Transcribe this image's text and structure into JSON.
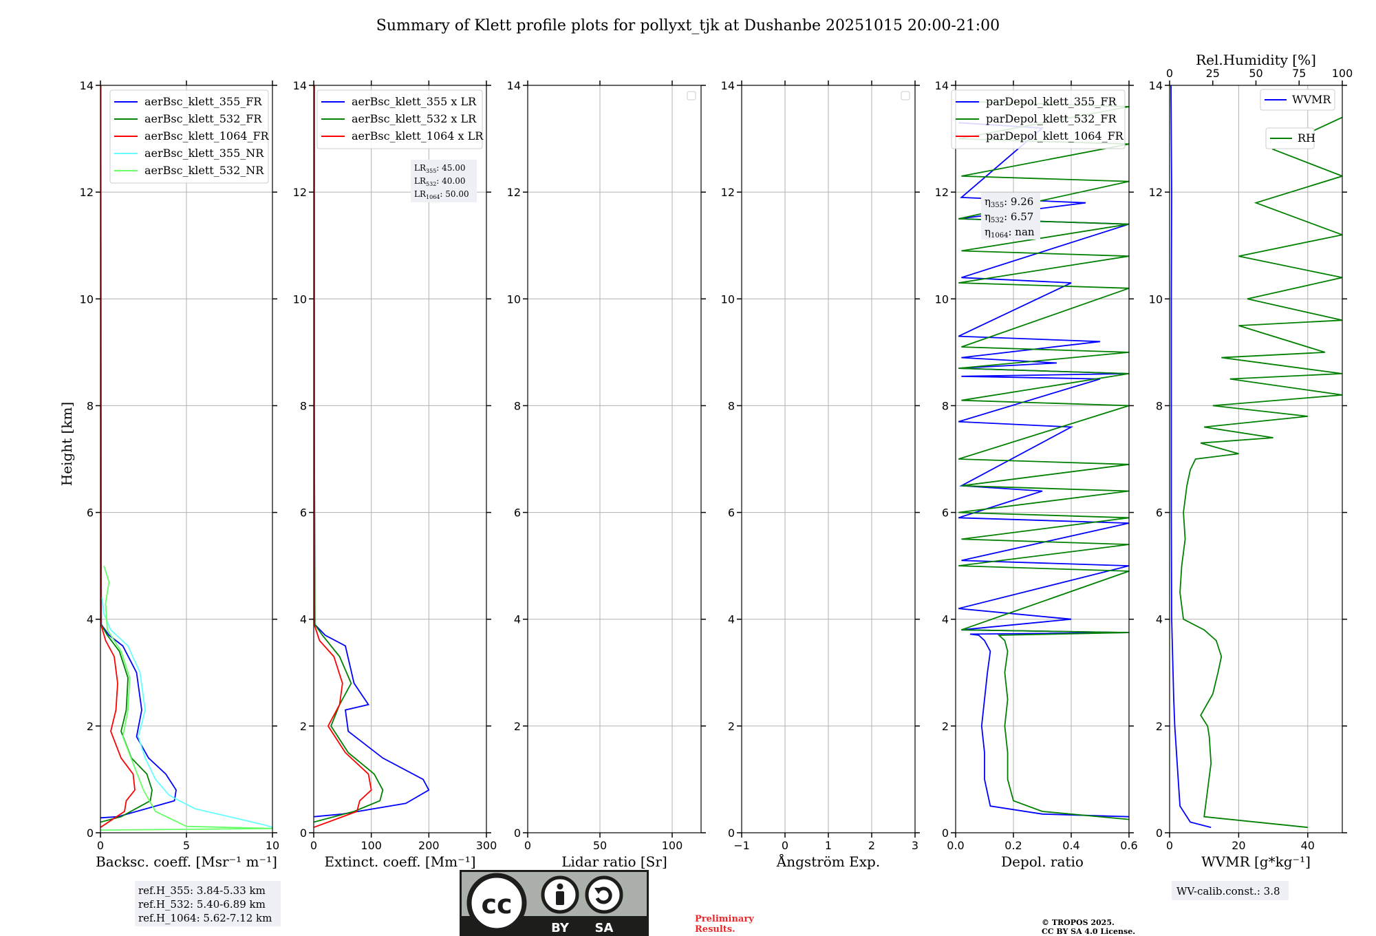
{
  "title": "Summary of Klett profile plots for pollyxt_tjk at Dushanbe 20251015 20:00-21:00",
  "ylabel": "Height [km]",
  "colors": {
    "blue": "#0000ff",
    "green": "#008000",
    "red": "#ff0000",
    "cyan": "#66ffff",
    "lightgreen": "#66ff66",
    "grid": "#b0b0b0",
    "box": "#eef0f5",
    "prelim": "#e8282b"
  },
  "chart_data": [
    {
      "type": "line",
      "xlabel": "Backsc. coeff. [Msr⁻¹ m⁻¹]",
      "xlim": [
        0,
        10
      ],
      "xticks": [
        0,
        5,
        10
      ],
      "ylim": [
        0,
        14
      ],
      "yticks": [
        0,
        2,
        4,
        6,
        8,
        10,
        12,
        14
      ],
      "grid": true,
      "legend_position": "top-right",
      "series": [
        {
          "name": "aerBsc_klett_355_FR",
          "color": "#0000ff",
          "x": [
            0,
            1.0,
            4.3,
            4.4,
            3.8,
            2.8,
            2.1,
            2.4,
            2.1,
            1.3,
            0.5,
            0.05,
            0.04,
            0.03,
            0.02
          ],
          "y": [
            0.28,
            0.3,
            0.6,
            0.8,
            1.1,
            1.4,
            1.8,
            2.3,
            3.0,
            3.5,
            3.7,
            3.9,
            6.0,
            10.0,
            14.0
          ]
        },
        {
          "name": "aerBsc_klett_532_FR",
          "color": "#008000",
          "x": [
            0,
            1.2,
            2.9,
            3.0,
            2.7,
            1.8,
            1.2,
            1.5,
            1.6,
            1.1,
            0.4,
            0.04,
            0.03,
            0.02,
            0.02
          ],
          "y": [
            0.2,
            0.3,
            0.6,
            0.8,
            1.1,
            1.4,
            1.9,
            2.3,
            2.9,
            3.4,
            3.7,
            3.9,
            6.0,
            10.0,
            14.0
          ]
        },
        {
          "name": "aerBsc_klett_1064_FR",
          "color": "#ff0000",
          "x": [
            0,
            1.4,
            1.5,
            2.0,
            1.9,
            1.2,
            0.6,
            0.9,
            1.0,
            0.8,
            0.3,
            0.03,
            0.02,
            0.02,
            0.01
          ],
          "y": [
            0.1,
            0.4,
            0.6,
            0.8,
            1.1,
            1.4,
            1.9,
            2.3,
            2.8,
            3.3,
            3.6,
            3.9,
            6.0,
            10.0,
            14.0
          ]
        },
        {
          "name": "aerBsc_klett_355_NR",
          "color": "#66ffff",
          "x": [
            10,
            9.5,
            7.5,
            5.5,
            4.0,
            3.2,
            2.6,
            2.2,
            2.6,
            2.3,
            1.6,
            0.6,
            0.2,
            0.1
          ],
          "y": [
            0.1,
            0.15,
            0.3,
            0.45,
            0.7,
            1.0,
            1.4,
            1.8,
            2.3,
            3.0,
            3.5,
            3.8,
            4.1,
            4.4
          ]
        },
        {
          "name": "aerBsc_klett_532_NR",
          "color": "#66ff66",
          "x": [
            0,
            10,
            5.0,
            3.2,
            2.5,
            1.9,
            1.3,
            1.6,
            1.7,
            1.2,
            0.4,
            0.3,
            0.5,
            0.2
          ],
          "y": [
            0.05,
            0.08,
            0.12,
            0.4,
            0.8,
            1.3,
            1.8,
            2.3,
            2.9,
            3.4,
            3.8,
            4.3,
            4.7,
            5.0
          ]
        }
      ],
      "ref_info": [
        "ref.H_355: 3.84-5.33 km",
        "ref.H_532: 5.40-6.89 km",
        "ref.H_1064: 5.62-7.12 km"
      ]
    },
    {
      "type": "line",
      "xlabel": "Extinct. coeff. [Mm⁻¹]",
      "xlim": [
        0,
        300
      ],
      "xticks": [
        0,
        100,
        200,
        300
      ],
      "ylim": [
        0,
        14
      ],
      "yticks": [
        0,
        2,
        4,
        6,
        8,
        10,
        12,
        14
      ],
      "grid": true,
      "legend_position": "top-right",
      "series": [
        {
          "name": "aerBsc_klett_355 x LR",
          "color": "#0000ff",
          "x": [
            0,
            50,
            160,
            200,
            190,
            120,
            60,
            55,
            95,
            70,
            55,
            20,
            2,
            1,
            1
          ],
          "y": [
            0.3,
            0.35,
            0.55,
            0.8,
            1.0,
            1.4,
            1.9,
            2.3,
            2.4,
            2.8,
            3.5,
            3.7,
            3.9,
            8.0,
            14.0
          ]
        },
        {
          "name": "aerBsc_klett_532 x LR",
          "color": "#008000",
          "x": [
            0,
            70,
            115,
            120,
            105,
            60,
            30,
            45,
            65,
            45,
            15,
            2,
            1,
            1
          ],
          "y": [
            0.2,
            0.4,
            0.6,
            0.8,
            1.1,
            1.5,
            2.0,
            2.4,
            2.8,
            3.3,
            3.7,
            3.9,
            8.0,
            14.0
          ]
        },
        {
          "name": "aerBsc_klett_1064 x LR",
          "color": "#ff0000",
          "x": [
            0,
            75,
            80,
            100,
            95,
            55,
            25,
            45,
            50,
            35,
            10,
            1,
            1,
            1
          ],
          "y": [
            0.1,
            0.4,
            0.6,
            0.8,
            1.1,
            1.5,
            2.0,
            2.4,
            2.8,
            3.3,
            3.6,
            3.9,
            8.0,
            14.0
          ]
        }
      ],
      "lr_info": {
        "lr355": "45.00",
        "lr532": "40.00",
        "lr1064": "50.00"
      }
    },
    {
      "type": "line",
      "xlabel": "Lidar ratio [Sr]",
      "xlim": [
        0,
        120
      ],
      "xticks": [
        0,
        50,
        100
      ],
      "ylim": [
        0,
        14
      ],
      "yticks": [
        0,
        2,
        4,
        6,
        8,
        10,
        12,
        14
      ],
      "grid": true,
      "series": []
    },
    {
      "type": "line",
      "xlabel": "Ångström Exp.",
      "xlim": [
        -1,
        3
      ],
      "xticks": [
        -1,
        0,
        1,
        2,
        3
      ],
      "ylim": [
        0,
        14
      ],
      "yticks": [
        0,
        2,
        4,
        6,
        8,
        10,
        12,
        14
      ],
      "grid": true,
      "series": []
    },
    {
      "type": "line",
      "xlabel": "Depol. ratio",
      "xlim": [
        0,
        0.6
      ],
      "xticks": [
        0.0,
        0.2,
        0.4,
        0.6
      ],
      "xtick_labels": [
        "0.0",
        "0.2",
        "0.4",
        "0.6"
      ],
      "ylim": [
        0,
        14
      ],
      "yticks": [
        0,
        2,
        4,
        6,
        8,
        10,
        12,
        14
      ],
      "grid": true,
      "legend_position": "top-right",
      "series": [
        {
          "name": "parDepol_klett_355_FR",
          "color": "#0000ff",
          "x": [
            0.6,
            0.3,
            0.12,
            0.1,
            0.1,
            0.09,
            0.1,
            0.11,
            0.12,
            0.1,
            0.08,
            0.05,
            0.6,
            0.02,
            0.4,
            0.01,
            0.6,
            0.02,
            0.6,
            0.01,
            0.3,
            0.02,
            0.4,
            0.01,
            0.5,
            0.02,
            0.6,
            0.01,
            0.35,
            0.02,
            0.5,
            0.01,
            0.4,
            0.02,
            0.6,
            0.01,
            0.45,
            0.02,
            0.3,
            0.01
          ],
          "y": [
            0.3,
            0.35,
            0.5,
            1.0,
            1.5,
            2.0,
            2.5,
            3.0,
            3.4,
            3.6,
            3.7,
            3.72,
            3.75,
            3.8,
            4.0,
            4.2,
            5.0,
            5.1,
            5.8,
            5.9,
            6.4,
            6.5,
            7.6,
            7.7,
            8.5,
            8.55,
            8.6,
            8.7,
            8.8,
            8.9,
            9.2,
            9.3,
            10.3,
            10.4,
            11.4,
            11.5,
            11.8,
            11.9,
            13.2,
            13.3
          ]
        },
        {
          "name": "parDepol_klett_532_FR",
          "color": "#008000",
          "x": [
            0.6,
            0.3,
            0.2,
            0.18,
            0.18,
            0.17,
            0.18,
            0.17,
            0.18,
            0.17,
            0.15,
            0.6,
            0.02,
            0.6,
            0.01,
            0.6,
            0.02,
            0.6,
            0.01,
            0.6,
            0.02,
            0.6,
            0.01,
            0.6,
            0.02,
            0.6,
            0.01,
            0.6,
            0.02,
            0.6,
            0.01,
            0.6,
            0.02,
            0.6,
            0.01,
            0.6,
            0.02,
            0.6,
            0.01,
            0.6,
            0.02
          ],
          "y": [
            0.25,
            0.4,
            0.6,
            1.0,
            1.5,
            2.0,
            2.5,
            3.0,
            3.4,
            3.6,
            3.7,
            3.75,
            3.8,
            4.9,
            5.0,
            5.4,
            5.5,
            5.9,
            6.0,
            6.4,
            6.5,
            6.9,
            7.0,
            8.0,
            8.1,
            8.6,
            8.7,
            9.0,
            9.1,
            10.2,
            10.3,
            10.8,
            10.9,
            11.4,
            11.5,
            12.2,
            12.3,
            12.9,
            13.0,
            13.6,
            13.7
          ]
        },
        {
          "name": "parDepol_klett_1064_FR",
          "color": "#ff0000",
          "x": [],
          "y": []
        }
      ],
      "eta_info": {
        "eta355": "9.26",
        "eta532": "6.57",
        "eta1064": "nan"
      }
    },
    {
      "type": "line",
      "xlabel": "WVMR [g*kg⁻¹]",
      "xlim": [
        0,
        50
      ],
      "xticks": [
        0,
        20,
        40
      ],
      "x2label": "Rel.Humidity [%]",
      "x2lim": [
        0,
        100
      ],
      "x2ticks": [
        0,
        25,
        50,
        75,
        100
      ],
      "ylim": [
        0,
        14
      ],
      "yticks": [
        0,
        2,
        4,
        6,
        8,
        10,
        12,
        14
      ],
      "grid": true,
      "series": [
        {
          "name": "WVMR",
          "color": "#0000ff",
          "axis": "bottom",
          "x": [
            12,
            6,
            3,
            2.5,
            2,
            1.5,
            1.2,
            1.0,
            0.8,
            0.6,
            0.5,
            0.5,
            0.5,
            0.6,
            0.5,
            0.4
          ],
          "y": [
            0.1,
            0.2,
            0.5,
            1.0,
            1.5,
            2.0,
            2.5,
            3.0,
            3.5,
            4.0,
            6.0,
            8.0,
            10.0,
            12.0,
            13.0,
            14.0
          ]
        },
        {
          "name": "RH",
          "color": "#008000",
          "axis": "top",
          "x": [
            80,
            20,
            22,
            24,
            23,
            22,
            18,
            25,
            28,
            30,
            27,
            20,
            8,
            6,
            7,
            9,
            8,
            10,
            12,
            15,
            40,
            18,
            60,
            20,
            80,
            25,
            100,
            35,
            100,
            30,
            90,
            40,
            100,
            45,
            100,
            40,
            100,
            50,
            100,
            60,
            100
          ],
          "y": [
            0.1,
            0.3,
            0.8,
            1.3,
            1.8,
            2.0,
            2.2,
            2.6,
            3.0,
            3.3,
            3.6,
            3.8,
            4.0,
            4.5,
            5.0,
            5.5,
            6.0,
            6.5,
            6.8,
            7.0,
            7.1,
            7.3,
            7.4,
            7.6,
            7.8,
            8.0,
            8.2,
            8.5,
            8.6,
            8.9,
            9.0,
            9.5,
            9.6,
            10.0,
            10.4,
            10.8,
            11.2,
            11.8,
            12.3,
            12.8,
            13.4
          ]
        }
      ],
      "wv_info": "WV-calib.const.: 3.8"
    }
  ],
  "footer": {
    "cc_by": "BY",
    "cc_sa": "SA",
    "preliminary": [
      "Preliminary",
      "Results."
    ],
    "copyright": [
      "© TROPOS 2025.",
      "CC BY SA 4.0 License."
    ]
  }
}
